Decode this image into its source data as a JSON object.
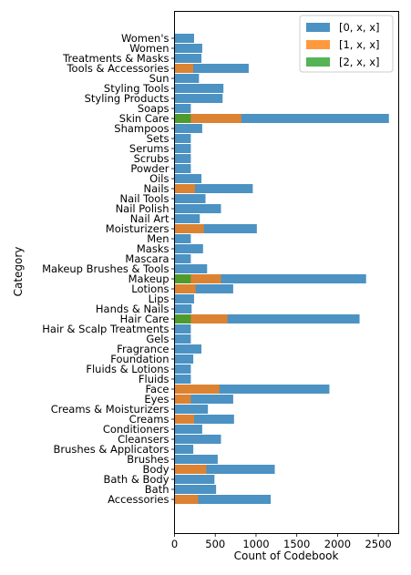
{
  "chart_data": {
    "type": "bar",
    "orientation": "horizontal",
    "xlabel": "Count of Codebook",
    "ylabel": "Category",
    "xlim": [
      0,
      2750
    ],
    "xticks": [
      0,
      500,
      1000,
      1500,
      2000,
      2500
    ],
    "grid": false,
    "legend_position": "top-right",
    "categories": [
      "Accessories",
      "Bath",
      "Bath & Body",
      "Body",
      "Brushes",
      "Brushes & Applicators",
      "Cleansers",
      "Conditioners",
      "Creams",
      "Creams & Moisturizers",
      "Eyes",
      "Face",
      "Fluids",
      "Fluids & Lotions",
      "Foundation",
      "Fragrance",
      "Gels",
      "Hair & Scalp Treatments",
      "Hair Care",
      "Hands & Nails",
      "Lips",
      "Lotions",
      "Makeup",
      "Makeup Brushes & Tools",
      "Mascara",
      "Masks",
      "Men",
      "Moisturizers",
      "Nail Art",
      "Nail Polish",
      "Nail Tools",
      "Nails",
      "Oils",
      "Powder",
      "Scrubs",
      "Serums",
      "Sets",
      "Shampoos",
      "Skin Care",
      "Soaps",
      "Styling Products",
      "Styling Tools",
      "Sun",
      "Tools & Accessories",
      "Treatments & Masks",
      "Women",
      "Women's"
    ],
    "series": [
      {
        "name": "[0, x, x]",
        "color": "#1f77b4",
        "values": [
          1180,
          510,
          490,
          1230,
          530,
          230,
          570,
          340,
          730,
          410,
          720,
          1900,
          200,
          200,
          230,
          330,
          200,
          200,
          2270,
          210,
          240,
          720,
          2350,
          400,
          200,
          350,
          200,
          1010,
          310,
          570,
          380,
          960,
          330,
          200,
          200,
          200,
          200,
          340,
          2630,
          200,
          590,
          600,
          300,
          910,
          330,
          340,
          240
        ]
      },
      {
        "name": "[1, x, x]",
        "color": "#ff7f0e",
        "values": [
          290,
          0,
          0,
          390,
          0,
          0,
          0,
          0,
          240,
          0,
          200,
          550,
          0,
          0,
          0,
          0,
          0,
          0,
          650,
          0,
          0,
          260,
          570,
          0,
          0,
          0,
          0,
          360,
          0,
          0,
          0,
          250,
          0,
          0,
          0,
          0,
          0,
          0,
          820,
          0,
          0,
          0,
          0,
          230,
          0,
          0,
          0
        ]
      },
      {
        "name": "[2, x, x]",
        "color": "#2ca02c",
        "values": [
          0,
          0,
          0,
          0,
          0,
          0,
          0,
          0,
          0,
          0,
          0,
          0,
          0,
          0,
          0,
          0,
          0,
          0,
          200,
          0,
          0,
          0,
          200,
          0,
          0,
          0,
          0,
          0,
          0,
          0,
          0,
          0,
          0,
          0,
          0,
          0,
          0,
          0,
          200,
          0,
          0,
          0,
          0,
          0,
          0,
          0,
          0
        ]
      }
    ]
  }
}
